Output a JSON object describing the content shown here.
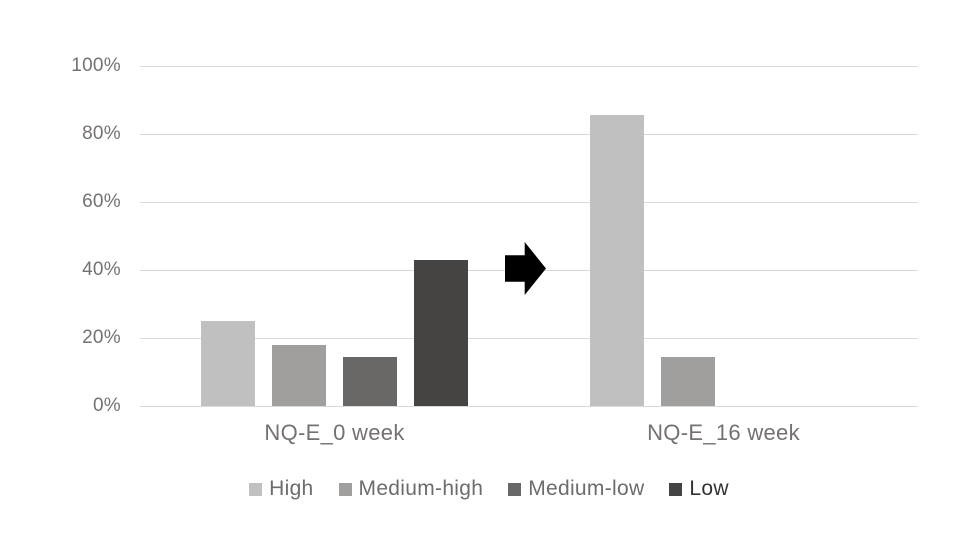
{
  "chart_data": {
    "type": "bar",
    "title": "",
    "categories": [
      "NQ-E_0 week",
      "NQ-E_16 week"
    ],
    "series": [
      {
        "name": "High",
        "color": "#c1c0c0",
        "label_color": "#6e6b6b",
        "values": [
          25.0,
          85.7
        ]
      },
      {
        "name": "Medium-high",
        "color": "#a19f9d",
        "label_color": "#6e6b6b",
        "values": [
          17.9,
          14.3
        ]
      },
      {
        "name": "Medium-low",
        "color": "#6a6866",
        "label_color": "#6e6b6b",
        "values": [
          14.3,
          0
        ]
      },
      {
        "name": "Low",
        "color": "#464343",
        "label_color": "#323232",
        "values": [
          42.9,
          0
        ]
      }
    ],
    "y_ticks": [
      "100%",
      "80%",
      "60%",
      "40%",
      "20%",
      "0%"
    ],
    "ylim": [
      0,
      100
    ],
    "grid": true,
    "legend_position": "bottom",
    "annotation": {
      "icon": "arrow-right",
      "meaning": "change from 0 week to 16 week"
    },
    "colors": {
      "background": "#ffffff",
      "gridline": "#d9d9d9",
      "axis_text": "#767171",
      "legend_text": "#6e6b6b",
      "arrow": "#000000"
    }
  }
}
